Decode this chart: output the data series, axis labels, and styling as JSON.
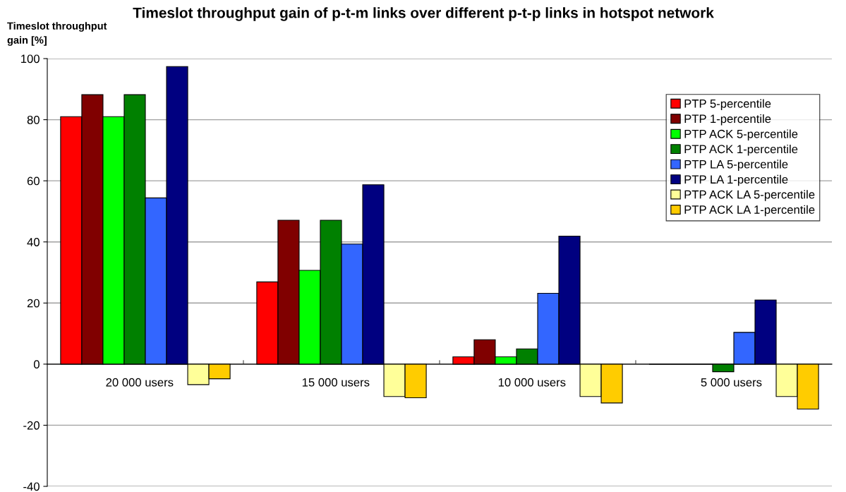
{
  "chart_data": {
    "type": "bar",
    "title": "Timeslot throughput gain of p-t-m links over different p-t-p links in hotspot network",
    "ylabel": "Timeslot throughput\ngain [%]",
    "categories": [
      "20 000 users",
      "15 000 users",
      "10 000 users",
      "5 000 users"
    ],
    "series": [
      {
        "name": "PTP 5-percentile",
        "color": "#ff0000",
        "values": [
          81,
          26.9,
          2.4,
          0
        ]
      },
      {
        "name": "PTP 1-percentile",
        "color": "#800000",
        "values": [
          88.2,
          47.1,
          8.0,
          0
        ]
      },
      {
        "name": "PTP ACK 5-percentile",
        "color": "#00ff00",
        "values": [
          81,
          30.7,
          2.4,
          0
        ]
      },
      {
        "name": "PTP ACK 1-percentile",
        "color": "#008000",
        "values": [
          88.2,
          47.1,
          5.0,
          -2.5
        ]
      },
      {
        "name": "PTP LA 5-percentile",
        "color": "#3366ff",
        "values": [
          54.4,
          39.3,
          23.2,
          10.4
        ]
      },
      {
        "name": "PTP LA 1-percentile",
        "color": "#000080",
        "values": [
          97.4,
          58.7,
          41.9,
          21.0
        ]
      },
      {
        "name": "PTP ACK LA 5-percentile",
        "color": "#ffff99",
        "values": [
          -6.7,
          -10.6,
          -10.6,
          -10.6
        ]
      },
      {
        "name": "PTP ACK LA 1-percentile",
        "color": "#ffcc00",
        "values": [
          -4.8,
          -11.0,
          -12.7,
          -14.7
        ]
      }
    ],
    "ylim": [
      -40,
      100
    ],
    "yticks": [
      -40,
      -20,
      0,
      20,
      40,
      60,
      80,
      100
    ],
    "grid": "y",
    "legend": "top right"
  }
}
